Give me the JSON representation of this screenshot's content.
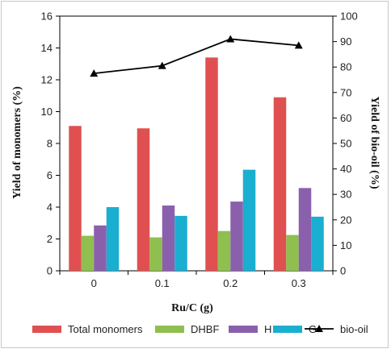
{
  "chart_data": {
    "type": "bar",
    "categories": [
      "0",
      "0.1",
      "0.2",
      "0.3"
    ],
    "xlabel": "Ru/C (g)",
    "ylabel": "Yield of monomers (%)",
    "y2label": "Yield of bio-oil (%)",
    "ylim": [
      0,
      16
    ],
    "y2lim": [
      0,
      100
    ],
    "yticks": [
      "0",
      "2",
      "4",
      "6",
      "8",
      "10",
      "12",
      "14",
      "16"
    ],
    "y2ticks": [
      "0",
      "10",
      "20",
      "30",
      "40",
      "50",
      "60",
      "70",
      "80",
      "90",
      "100"
    ],
    "grid": false,
    "legend_position": "bottom",
    "series": [
      {
        "name": "Total monomers",
        "type": "bar",
        "axis": "left",
        "color": "#e05050",
        "values": [
          9.1,
          8.95,
          13.4,
          10.9
        ]
      },
      {
        "name": "DHBF",
        "type": "bar",
        "axis": "left",
        "color": "#8fbf4f",
        "values": [
          2.2,
          2.1,
          2.5,
          2.25
        ]
      },
      {
        "name": "H",
        "type": "bar",
        "axis": "left",
        "color": "#8a60ad",
        "values": [
          2.85,
          4.1,
          4.35,
          5.2
        ]
      },
      {
        "name": "G",
        "type": "bar",
        "axis": "left",
        "color": "#1aaed0",
        "values": [
          4.0,
          3.45,
          6.35,
          3.4
        ]
      },
      {
        "name": "bio-oil",
        "type": "line",
        "axis": "right",
        "marker": "triangle",
        "color": "#000000",
        "values": [
          77.5,
          80.5,
          91,
          88.5
        ]
      }
    ]
  }
}
